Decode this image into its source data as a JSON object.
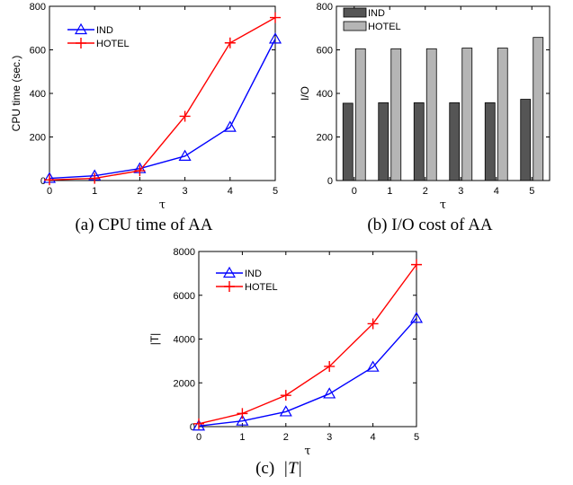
{
  "chart_data": [
    {
      "id": "a",
      "type": "line",
      "caption": "(a) CPU time of AA",
      "xlabel": "τ",
      "ylabel": "CPU time (sec.)",
      "x": [
        0,
        1,
        2,
        3,
        4,
        5
      ],
      "xlim": [
        0,
        5
      ],
      "ylim": [
        0,
        800
      ],
      "xticks": [
        0,
        1,
        2,
        3,
        4,
        5
      ],
      "yticks": [
        0,
        200,
        400,
        600,
        800
      ],
      "legend_position": "top-left",
      "grid": false,
      "series": [
        {
          "name": "IND",
          "color": "#0000ff",
          "marker": "triangle",
          "values": [
            10,
            22,
            55,
            112,
            245,
            650
          ]
        },
        {
          "name": "HOTEL",
          "color": "#ff0000",
          "marker": "plus",
          "values": [
            3,
            10,
            45,
            295,
            632,
            748
          ]
        }
      ]
    },
    {
      "id": "b",
      "type": "bar",
      "caption": "(b) I/O cost of AA",
      "xlabel": "τ",
      "ylabel": "I/O",
      "categories": [
        "0",
        "1",
        "2",
        "3",
        "4",
        "5"
      ],
      "ylim": [
        0,
        800
      ],
      "yticks": [
        0,
        200,
        400,
        600,
        800
      ],
      "legend_position": "top-left",
      "grid": false,
      "series": [
        {
          "name": "IND",
          "color": "#555555",
          "values": [
            355,
            357,
            357,
            357,
            357,
            373
          ]
        },
        {
          "name": "HOTEL",
          "color": "#b5b5b5",
          "values": [
            605,
            605,
            605,
            608,
            608,
            657
          ]
        }
      ]
    },
    {
      "id": "c",
      "type": "line",
      "caption_prefix": "(c)",
      "caption_math": "|T|",
      "xlabel": "τ",
      "ylabel": "|T|",
      "x": [
        0,
        1,
        2,
        3,
        4,
        5
      ],
      "xlim": [
        0,
        5
      ],
      "ylim": [
        0,
        8000
      ],
      "xticks": [
        0,
        1,
        2,
        3,
        4,
        5
      ],
      "yticks": [
        0,
        2000,
        4000,
        6000,
        8000
      ],
      "legend_position": "top-left",
      "grid": false,
      "series": [
        {
          "name": "IND",
          "color": "#0000ff",
          "marker": "triangle",
          "values": [
            30,
            260,
            680,
            1500,
            2720,
            4950
          ]
        },
        {
          "name": "HOTEL",
          "color": "#ff0000",
          "marker": "plus",
          "values": [
            130,
            600,
            1430,
            2750,
            4700,
            7400
          ]
        }
      ]
    }
  ]
}
